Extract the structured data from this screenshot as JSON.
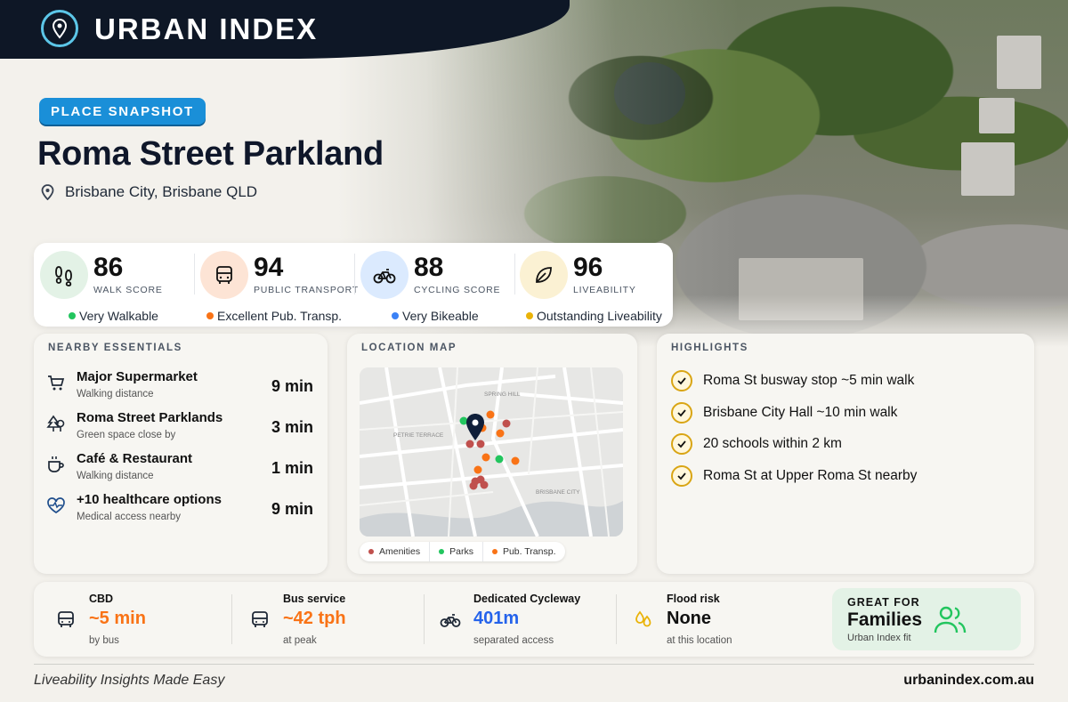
{
  "brand": {
    "name": "URBAN INDEX"
  },
  "place": {
    "tag": "PLACE SNAPSHOT",
    "title": "Roma Street Parkland",
    "location": "Brisbane City, Brisbane QLD"
  },
  "scores": [
    {
      "value": "86",
      "label": "WALK SCORE",
      "rating": "Very Walkable",
      "rating_color": "#22c55e",
      "icon": "footprints-icon",
      "bg": "#e3f2e6"
    },
    {
      "value": "94",
      "label": "PUBLIC TRANSPORT",
      "rating": "Excellent Pub. Transp.",
      "rating_color": "#f97316",
      "icon": "bus-icon",
      "bg": "#fde4d5"
    },
    {
      "value": "88",
      "label": "CYCLING SCORE",
      "rating": "Very Bikeable",
      "rating_color": "#3b82f6",
      "icon": "bicycle-icon",
      "bg": "#dbeafe"
    },
    {
      "value": "96",
      "label": "LIVEABILITY",
      "rating": "Outstanding Liveability",
      "rating_color": "#eab308",
      "icon": "leaf-icon",
      "bg": "#fbf1d3"
    }
  ],
  "essentials": {
    "title": "NEARBY ESSENTIALS",
    "items": [
      {
        "name": "Major Supermarket",
        "sub": "Walking distance",
        "time": "9 min",
        "icon": "cart-icon"
      },
      {
        "name": "Roma Street Parklands",
        "sub": "Green space close by",
        "time": "3 min",
        "icon": "trees-icon"
      },
      {
        "name": "Café & Restaurant",
        "sub": "Walking distance",
        "time": "1 min",
        "icon": "coffee-icon"
      },
      {
        "name": "+10 healthcare options",
        "sub": "Medical access nearby",
        "time": "9 min",
        "icon": "heart-pulse-icon"
      }
    ]
  },
  "map": {
    "title": "LOCATION MAP",
    "labels": [
      "SPRING HILL",
      "PETRIE TERRACE",
      "BRISBANE CITY"
    ],
    "legend": [
      {
        "label": "Amenities",
        "color": "#c0504d"
      },
      {
        "label": "Parks",
        "color": "#22c55e"
      },
      {
        "label": "Pub. Transp.",
        "color": "#f97316"
      }
    ]
  },
  "highlights": {
    "title": "HIGHLIGHTS",
    "items": [
      "Roma St busway stop ~5 min walk",
      "Brisbane City Hall ~10 min walk",
      "20 schools within 2 km",
      "Roma St at Upper Roma St nearby"
    ]
  },
  "stats": [
    {
      "title": "CBD",
      "value": "~5 min",
      "sub": "by bus",
      "color": "#f97316",
      "icon": "bus-icon"
    },
    {
      "title": "Bus service",
      "value": "~42 tph",
      "sub": "at peak",
      "color": "#f97316",
      "icon": "bus-icon"
    },
    {
      "title": "Dedicated Cycleway",
      "value": "401m",
      "sub": "separated access",
      "color": "#2563eb",
      "icon": "bicycle-icon"
    },
    {
      "title": "Flood risk",
      "value": "None",
      "sub": "at this location",
      "color": "#111111",
      "icon": "droplets-icon"
    }
  ],
  "great_for": {
    "label": "GREAT FOR",
    "value": "Families",
    "sub": "Urban Index fit"
  },
  "footer": {
    "tagline": "Liveability Insights Made Easy",
    "site": "urbanindex.com.au"
  }
}
